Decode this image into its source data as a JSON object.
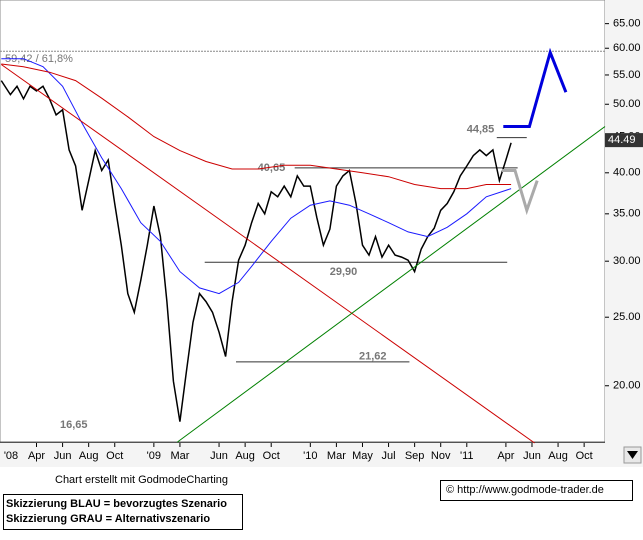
{
  "chart_data": {
    "type": "line",
    "log_scale": true,
    "xlim": [
      0.2,
      46.6
    ],
    "ylim": [
      16.6,
      70.2
    ],
    "xticks": [
      {
        "value": 0,
        "label": "'08"
      },
      {
        "value": 3,
        "label": "Apr"
      },
      {
        "value": 5,
        "label": "Jun"
      },
      {
        "value": 7,
        "label": "Aug"
      },
      {
        "value": 9,
        "label": "Oct"
      },
      {
        "value": 12,
        "label": "'09"
      },
      {
        "value": 14,
        "label": "Mar"
      },
      {
        "value": 17,
        "label": "Jun"
      },
      {
        "value": 19,
        "label": "Aug"
      },
      {
        "value": 21,
        "label": "Oct"
      },
      {
        "value": 24,
        "label": "'10"
      },
      {
        "value": 26,
        "label": "Mar"
      },
      {
        "value": 28,
        "label": "May"
      },
      {
        "value": 30,
        "label": "Jul"
      },
      {
        "value": 32,
        "label": "Sep"
      },
      {
        "value": 34,
        "label": "Nov"
      },
      {
        "value": 36,
        "label": "'11"
      },
      {
        "value": 39,
        "label": "Apr"
      },
      {
        "value": 41,
        "label": "Jun"
      },
      {
        "value": 43,
        "label": "Aug"
      },
      {
        "value": 45,
        "label": "Oct"
      }
    ],
    "yticks": [
      {
        "value": 20,
        "label": "20.00"
      },
      {
        "value": 25,
        "label": "25.00"
      },
      {
        "value": 30,
        "label": "30.00"
      },
      {
        "value": 35,
        "label": "35.00"
      },
      {
        "value": 40,
        "label": "40.00"
      },
      {
        "value": 45,
        "label": "45.00"
      },
      {
        "value": 50,
        "label": "50.00"
      },
      {
        "value": 55,
        "label": "55.00"
      },
      {
        "value": 60,
        "label": "60.00"
      },
      {
        "value": 65,
        "label": "65.00"
      }
    ],
    "current_price": 44.49,
    "series": [
      {
        "color": "#000000",
        "x": [
          0.3,
          1,
          1.5,
          2,
          2.5,
          3,
          3.5,
          4,
          4.5,
          5,
          5.5,
          6,
          6.5,
          7,
          7.5,
          8,
          8.5,
          9,
          9.5,
          10,
          10.5,
          11,
          11.5,
          12,
          12.5,
          13,
          13.5,
          14,
          14.5,
          15,
          15.5,
          16,
          16.5,
          17,
          17.5,
          18,
          18.5,
          19,
          19.5,
          20,
          20.5,
          21,
          21.5,
          22,
          22.5,
          23,
          23.5,
          24,
          24.5,
          25,
          25.5,
          26,
          26.5,
          27,
          27.5,
          28,
          28.5,
          29,
          29.5,
          30,
          30.5,
          31,
          31.5,
          32,
          32.5,
          33,
          33.5,
          34,
          34.5,
          35,
          35.5,
          36,
          36.5,
          37,
          37.5,
          38,
          38.5,
          39,
          39.4
        ],
        "values": [
          54,
          51.6,
          53,
          50.9,
          53,
          52.2,
          53,
          50.9,
          48.3,
          49.1,
          43.1,
          40.9,
          35.4,
          39,
          43,
          40.3,
          41.7,
          36.2,
          31.6,
          27,
          25.4,
          28.2,
          31.6,
          35.9,
          32.5,
          26.3,
          20.3,
          17.8,
          21,
          24.6,
          27,
          26.3,
          25.4,
          23.8,
          22,
          26.3,
          30.1,
          31.6,
          34,
          36.2,
          35,
          37.6,
          37,
          38.3,
          37,
          39.6,
          38.3,
          38.3,
          34.6,
          31.6,
          33.3,
          38.3,
          39.6,
          40.3,
          36.2,
          31.6,
          30.6,
          32.5,
          30.4,
          31.6,
          30.6,
          30.4,
          30.1,
          29,
          31.2,
          32.5,
          33.4,
          35.4,
          36.2,
          37.6,
          39.6,
          40.9,
          42.3,
          43.1,
          42.3,
          43.1,
          39,
          41.7,
          44.1
        ]
      },
      {
        "color": "#1a1aff",
        "x": [
          0.3,
          2,
          3.5,
          5,
          6.5,
          8,
          9.5,
          11,
          12.5,
          14,
          15.5,
          17,
          18.5,
          19.5,
          21,
          22.5,
          24,
          25.5,
          27,
          28.5,
          30,
          31.5,
          33,
          34.5,
          36,
          37.5,
          39.4
        ],
        "values": [
          58,
          58,
          56.5,
          53,
          47,
          42,
          38,
          34,
          32,
          29,
          27.5,
          27,
          28,
          29.5,
          32,
          34.5,
          36,
          36.5,
          36,
          35,
          34,
          33,
          32.5,
          33.5,
          35,
          37,
          38
        ]
      },
      {
        "color": "#cc0000",
        "x": [
          0.3,
          2,
          4,
          6,
          8,
          10,
          12,
          14,
          16,
          18,
          20,
          22,
          24,
          26,
          28,
          30,
          32,
          34,
          36,
          37.5,
          39.4
        ],
        "values": [
          57,
          56.5,
          55.5,
          54,
          51,
          48,
          45,
          43,
          41.5,
          40.5,
          40.5,
          41,
          41,
          40.5,
          40,
          39.5,
          38.5,
          38,
          38,
          38.5,
          38.5
        ]
      },
      {
        "color": "#cc0000",
        "x": [
          0.3,
          41.2
        ],
        "values": [
          56.9,
          16.6
        ]
      },
      {
        "color": "#008000",
        "x": [
          13.8,
          46.6
        ],
        "values": [
          16.65,
          46.5
        ]
      },
      {
        "color": "#0000dd",
        "x": [
          38.8,
          40.8,
          42.4,
          43.6
        ],
        "values": [
          46.5,
          46.5,
          59.2,
          52
        ]
      },
      {
        "color": "#aaaaaa",
        "x": [
          38.7,
          39.7,
          40.6,
          41.4
        ],
        "values": [
          40.3,
          40.3,
          35.4,
          39
        ]
      }
    ],
    "levels": [
      {
        "value": 59.42,
        "label": "59,42 / 61,8%",
        "x": [
          0.2,
          46.6
        ]
      },
      {
        "value": 44.85,
        "label": "44,85",
        "x": [
          38.3,
          40.6
        ]
      },
      {
        "value": 40.65,
        "label": "40,65",
        "x": [
          22.8,
          39.9
        ]
      },
      {
        "value": 29.9,
        "label": "29,90",
        "x": [
          15.9,
          39.1
        ]
      },
      {
        "value": 21.62,
        "label": "21,62",
        "x": [
          18.3,
          31.6
        ]
      },
      {
        "value": 16.65,
        "label": "16,65",
        "x": [
          0.2,
          46.6
        ]
      }
    ]
  },
  "footer": {
    "credit": "Chart erstellt mit GodmodeCharting",
    "legend_blue": "Skizzierung BLAU = bevorzugtes Szenario",
    "legend_gray": "Skizzierung GRAU = Alternativszenario",
    "url": "© http://www.godmode-trader.de"
  }
}
